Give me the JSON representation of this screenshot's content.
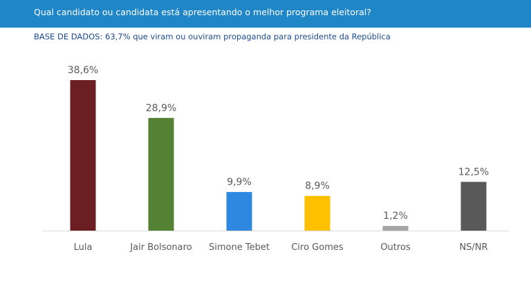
{
  "header": {
    "question": "Qual candidato ou candidata está apresentando o melhor programa eleitoral?",
    "base": "BASE DE DADOS: 63,7% que viram ou ouviram propaganda para presidente da República"
  },
  "colors": {
    "header_bg": "#1f86c8",
    "header_text": "#ffffff",
    "subtitle_text": "#1b4b8f"
  },
  "chart_data": {
    "type": "bar",
    "categories": [
      "Lula",
      "Jair Bolsonaro",
      "Simone Tebet",
      "Ciro Gomes",
      "Outros",
      "NS/NR"
    ],
    "values": [
      38.6,
      28.9,
      9.9,
      8.9,
      1.2,
      12.5
    ],
    "value_labels": [
      "38,6%",
      "28,9%",
      "9,9%",
      "8,9%",
      "1,2%",
      "12,5%"
    ],
    "colors": [
      "#6b1f22",
      "#548235",
      "#2e88e0",
      "#ffc000",
      "#a5a5a5",
      "#595959"
    ],
    "ylim": [
      0,
      40
    ],
    "grid": false,
    "legend": "none"
  }
}
